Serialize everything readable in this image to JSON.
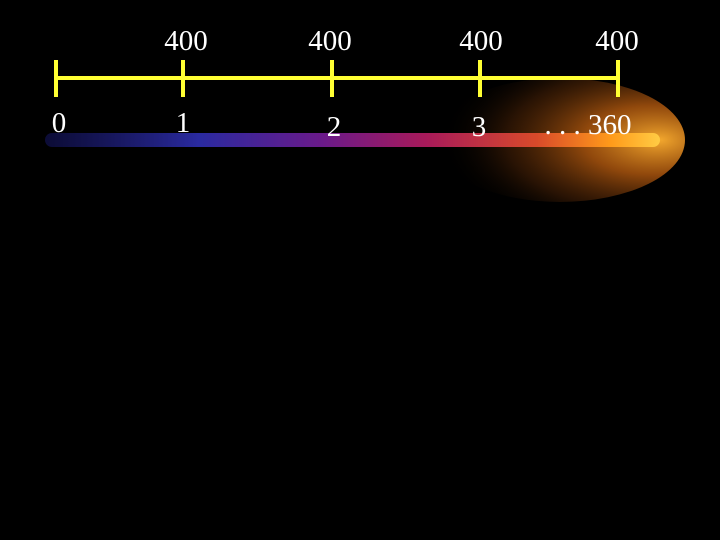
{
  "timeline": {
    "interval_labels": [
      "400",
      "400",
      "400",
      "400"
    ],
    "point_labels": [
      "0",
      "1",
      "2",
      "3",
      ". . . 360"
    ]
  },
  "colors": {
    "background": "#000000",
    "ruler": "#ffff33",
    "label": "#ffffff",
    "beam_gradient": [
      "#1a1a66",
      "#2a2aa0",
      "#6a1a8a",
      "#a01a5a",
      "#c83a2a",
      "#ff9a1a",
      "#ffcc44"
    ],
    "glow": [
      "#ffb030",
      "#c06010",
      "#000000"
    ]
  }
}
